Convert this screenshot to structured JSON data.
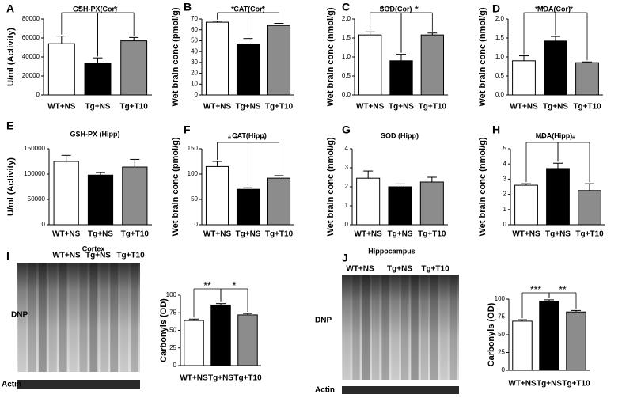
{
  "chart_data": [
    {
      "type": "bar",
      "panel": "A",
      "title": "GSH-PX(Cor)",
      "ylabel": "U/ml (Activity)",
      "categories": [
        "WT+NS",
        "Tg+NS",
        "Tg+T10"
      ],
      "values": [
        54000,
        33000,
        57000
      ],
      "errors": [
        8000,
        6000,
        3500
      ],
      "colors": [
        "#ffffff",
        "#000000",
        "#8c8c8c"
      ],
      "ylim": [
        0,
        80000
      ],
      "yticks": [
        0,
        20000,
        40000,
        60000,
        80000
      ],
      "annotations": [
        {
          "text": "*",
          "between": [
            0,
            1
          ]
        },
        {
          "text": "*",
          "between": [
            1,
            2
          ]
        }
      ]
    },
    {
      "type": "bar",
      "panel": "B",
      "title": "CAT(Cor)",
      "ylabel": "Wet brain conc (pmol/g)",
      "categories": [
        "WT+NS",
        "Tg+NS",
        "Tg+T10"
      ],
      "values": [
        67,
        47,
        64
      ],
      "errors": [
        1,
        5,
        2
      ],
      "colors": [
        "#ffffff",
        "#000000",
        "#8c8c8c"
      ],
      "ylim": [
        0,
        70
      ],
      "yticks": [
        0,
        10,
        20,
        30,
        40,
        50,
        60,
        70
      ],
      "annotations": [
        {
          "text": "*",
          "between": [
            0,
            1
          ]
        },
        {
          "text": "*",
          "between": [
            1,
            2
          ]
        }
      ]
    },
    {
      "type": "bar",
      "panel": "C",
      "title": "SOD(Cor)",
      "ylabel": "Wet brain conc (nmol/g)",
      "categories": [
        "WT+NS",
        "Tg+NS",
        "Tg+T10"
      ],
      "values": [
        1.58,
        0.9,
        1.58
      ],
      "errors": [
        0.08,
        0.17,
        0.05
      ],
      "colors": [
        "#ffffff",
        "#000000",
        "#8c8c8c"
      ],
      "ylim": [
        0,
        2
      ],
      "yticks": [
        {
          "value": 0,
          "label": "0.0"
        },
        0.5,
        {
          "value": 1,
          "label": "1.0"
        },
        1.5,
        {
          "value": 2,
          "label": "2.0"
        }
      ],
      "annotations": [
        {
          "text": "* *",
          "between": [
            0,
            1
          ]
        },
        {
          "text": "*",
          "between": [
            1,
            2
          ]
        }
      ]
    },
    {
      "type": "bar",
      "panel": "D",
      "title": "MDA(Cor)",
      "ylabel": "Wet brain conc (nmol/g)",
      "categories": [
        "WT+NS",
        "Tg+NS",
        "Tg+T10"
      ],
      "values": [
        0.9,
        1.42,
        0.85
      ],
      "errors": [
        0.13,
        0.12,
        0.02
      ],
      "colors": [
        "#ffffff",
        "#000000",
        "#8c8c8c"
      ],
      "ylim": [
        0,
        2
      ],
      "yticks": [
        {
          "value": 0,
          "label": "0.0"
        },
        0.5,
        {
          "value": 1,
          "label": "1.0"
        },
        1.5,
        {
          "value": 2,
          "label": "2.0"
        }
      ],
      "annotations": [
        {
          "text": "* *",
          "between": [
            0,
            1
          ]
        },
        {
          "text": "*",
          "between": [
            1,
            2
          ]
        }
      ]
    },
    {
      "type": "bar",
      "panel": "E",
      "title": "GSH-PX (Hipp)",
      "ylabel": "U/ml (Activity)",
      "categories": [
        "WT+NS",
        "Tg+NS",
        "Tg+T10"
      ],
      "values": [
        125000,
        98000,
        114000
      ],
      "errors": [
        12000,
        5000,
        15000
      ],
      "colors": [
        "#ffffff",
        "#000000",
        "#8c8c8c"
      ],
      "ylim": [
        0,
        150000
      ],
      "yticks": [
        0,
        50000,
        100000,
        150000
      ],
      "annotations": []
    },
    {
      "type": "bar",
      "panel": "F",
      "title": "CAT(Hipp)",
      "ylabel": "Wet brain conc (pmol/g)",
      "categories": [
        "WT+NS",
        "Tg+NS",
        "Tg+T10"
      ],
      "values": [
        115,
        70,
        92
      ],
      "errors": [
        10,
        3,
        5
      ],
      "colors": [
        "#ffffff",
        "#000000",
        "#8c8c8c"
      ],
      "ylim": [
        0,
        150
      ],
      "yticks": [
        0,
        50,
        100,
        150
      ],
      "annotations": [
        {
          "text": "* *",
          "between": [
            0,
            1
          ]
        },
        {
          "text": "*",
          "between": [
            1,
            2
          ]
        }
      ]
    },
    {
      "type": "bar",
      "panel": "G",
      "title": "SOD (Hipp)",
      "ylabel": "Wet brain conc (nmol/g)",
      "categories": [
        "WT+NS",
        "Tg+NS",
        "Tg+T10"
      ],
      "values": [
        2.45,
        2.0,
        2.25
      ],
      "errors": [
        0.38,
        0.15,
        0.25
      ],
      "colors": [
        "#ffffff",
        "#000000",
        "#8c8c8c"
      ],
      "ylim": [
        0,
        4
      ],
      "yticks": [
        0,
        1,
        2,
        3,
        4
      ],
      "annotations": []
    },
    {
      "type": "bar",
      "panel": "H",
      "title": "MDA(Hipp)",
      "ylabel": "Wet brain conc (nmol/g)",
      "categories": [
        "WT+NS",
        "Tg+NS",
        "Tg+T10"
      ],
      "values": [
        2.6,
        3.7,
        2.25
      ],
      "errors": [
        0.1,
        0.35,
        0.45
      ],
      "colors": [
        "#ffffff",
        "#000000",
        "#8c8c8c"
      ],
      "ylim": [
        0,
        5
      ],
      "yticks": [
        0,
        1,
        2,
        3,
        4,
        5
      ],
      "annotations": [
        {
          "text": "*",
          "between": [
            0,
            1
          ]
        },
        {
          "text": "*",
          "between": [
            1,
            2
          ]
        }
      ]
    },
    {
      "type": "bar",
      "panel": "I",
      "blot": {
        "title": "Cortex",
        "lanes": [
          "WT+NS",
          "Tg+NS",
          "Tg+T10"
        ],
        "rows": [
          "DNP",
          "Actin"
        ]
      },
      "ylabel": "Carbonyls (OD)",
      "categories": [
        "WT+NS",
        "Tg+NS",
        "Tg+T10"
      ],
      "values": [
        64,
        86,
        72
      ],
      "errors": [
        2,
        2,
        2
      ],
      "colors": [
        "#ffffff",
        "#000000",
        "#8c8c8c"
      ],
      "ylim": [
        0,
        100
      ],
      "yticks": [
        0,
        25,
        50,
        75,
        100
      ],
      "annotations": [
        {
          "text": "**",
          "between": [
            0,
            1
          ]
        },
        {
          "text": "*",
          "between": [
            1,
            2
          ]
        }
      ]
    },
    {
      "type": "bar",
      "panel": "J",
      "blot": {
        "title": "Hippocampus",
        "lanes": [
          "WT+NS",
          "Tg+NS",
          "Tg+T10"
        ],
        "rows": [
          "DNP",
          "Actin"
        ]
      },
      "ylabel": "Carbonyls (OD)",
      "categories": [
        "WT+NS",
        "Tg+NS",
        "Tg+T10"
      ],
      "values": [
        69,
        97,
        82
      ],
      "errors": [
        2,
        2,
        2
      ],
      "colors": [
        "#ffffff",
        "#000000",
        "#8c8c8c"
      ],
      "ylim": [
        0,
        100
      ],
      "yticks": [
        0,
        25,
        50,
        75,
        100
      ],
      "annotations": [
        {
          "text": "***",
          "between": [
            0,
            1
          ]
        },
        {
          "text": "**",
          "between": [
            1,
            2
          ]
        }
      ]
    }
  ]
}
